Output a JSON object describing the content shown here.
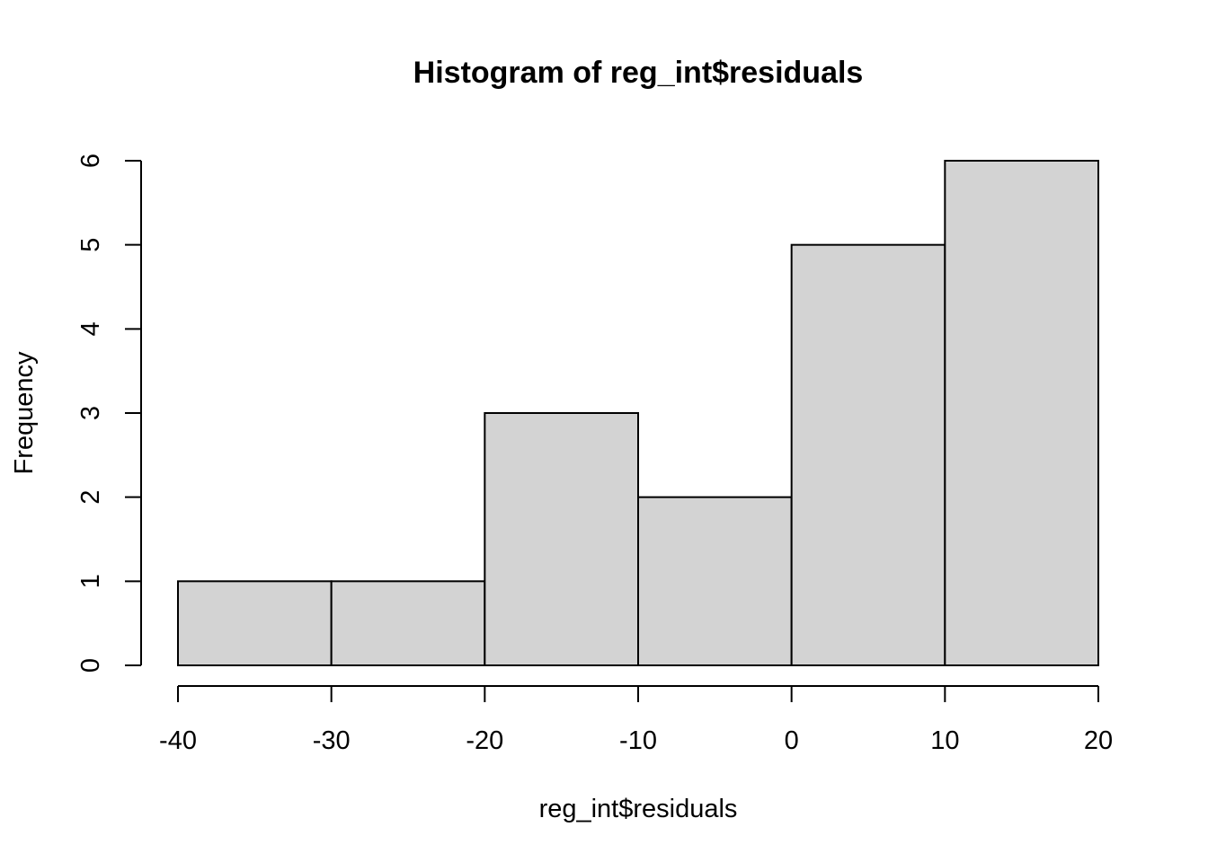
{
  "chart_data": {
    "type": "bar",
    "title": "Histogram of reg_int$residuals",
    "xlabel": "reg_int$residuals",
    "ylabel": "Frequency",
    "bins": [
      {
        "x0": -40,
        "x1": -30,
        "count": 1
      },
      {
        "x0": -30,
        "x1": -20,
        "count": 1
      },
      {
        "x0": -20,
        "x1": -10,
        "count": 3
      },
      {
        "x0": -10,
        "x1": 0,
        "count": 2
      },
      {
        "x0": 0,
        "x1": 10,
        "count": 5
      },
      {
        "x0": 10,
        "x1": 20,
        "count": 6
      }
    ],
    "x_ticks": [
      -40,
      -30,
      -20,
      -10,
      0,
      10,
      20
    ],
    "y_ticks": [
      0,
      1,
      2,
      3,
      4,
      5,
      6
    ],
    "xlim": [
      -40,
      20
    ],
    "ylim": [
      0,
      6
    ],
    "grid": false,
    "legend": "none",
    "bar_fill": "#d3d3d3",
    "bar_stroke": "#000000"
  }
}
